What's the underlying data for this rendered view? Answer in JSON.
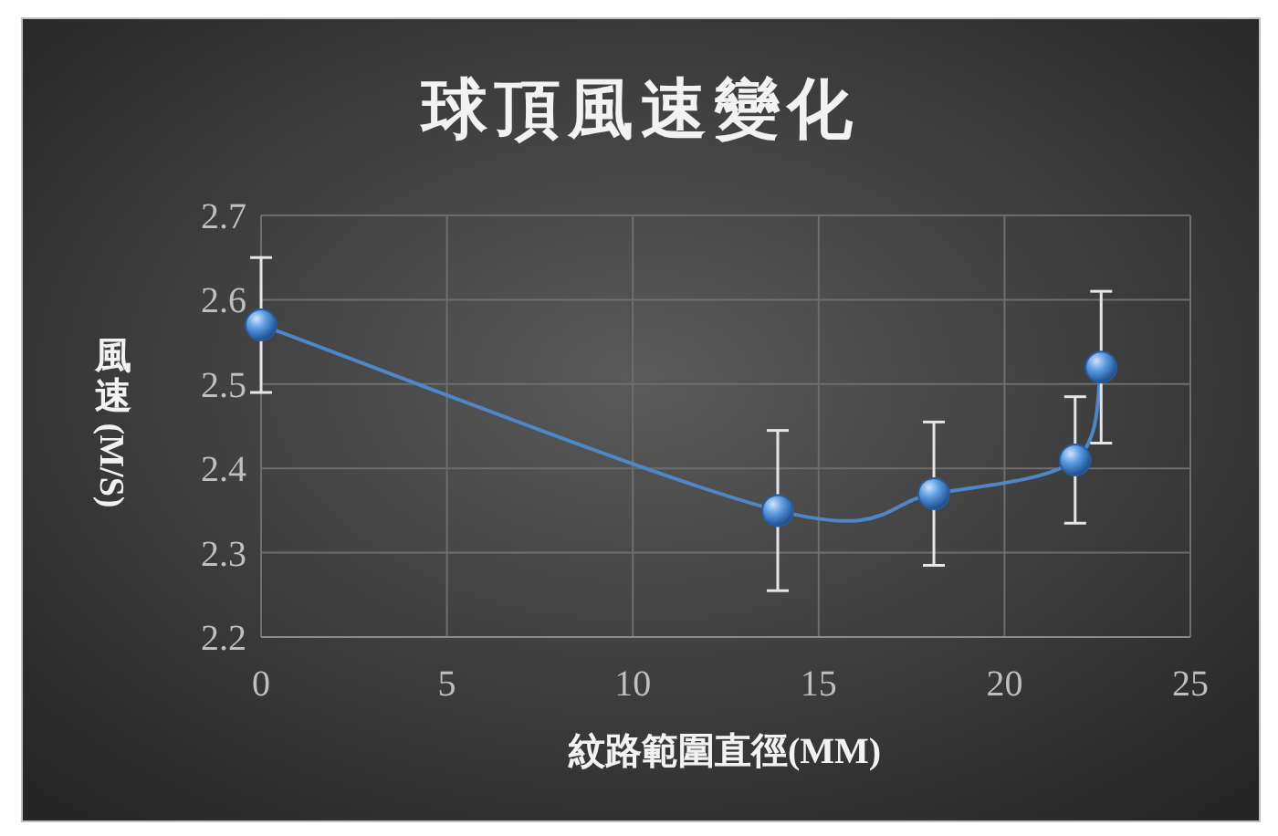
{
  "chart_data": {
    "type": "line",
    "title": "球頂風速變化",
    "xlabel": "紋路範圍直徑(MM)",
    "ylabel": "風速(M/S)",
    "x": [
      0,
      13.9,
      18.1,
      21.9,
      22.6
    ],
    "series": [
      {
        "color": "#4f86c6",
        "values": [
          2.57,
          2.35,
          2.37,
          2.41,
          2.52
        ],
        "errors": [
          0.08,
          0.095,
          0.085,
          0.075,
          0.09
        ]
      }
    ],
    "xlim": [
      0,
      25
    ],
    "xticks": [
      0,
      5,
      10,
      15,
      20,
      25
    ],
    "ylim": [
      2.2,
      2.7
    ],
    "yticks": [
      2.2,
      2.3,
      2.4,
      2.5,
      2.6,
      2.7
    ],
    "grid": true,
    "marker": "circle",
    "line_style": "solid"
  }
}
